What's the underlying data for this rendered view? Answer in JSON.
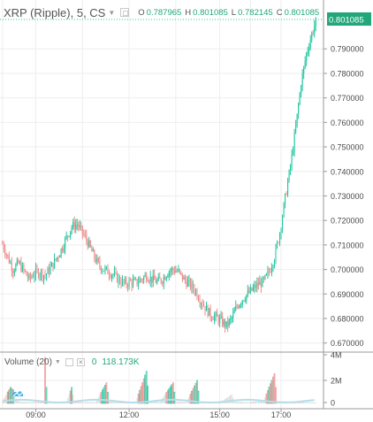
{
  "legend": {
    "title": "XRP (Ripple), 5, CS",
    "open_label": "O",
    "open_value": "0.787965",
    "high_label": "H",
    "high_value": "0.801085",
    "low_label": "L",
    "low_value": "0.782145",
    "close_label": "C",
    "close_value": "0.801085"
  },
  "volume_legend": {
    "label": "Volume (20)",
    "zero": "0",
    "value": "118.173K"
  },
  "colors": {
    "up": "#26c6a0",
    "down": "#f28b8b",
    "grid": "#eeeeee",
    "axis_text": "#4a4a4a",
    "price_tag_bg": "#22a77a",
    "volume_ma": "#b7dcea"
  },
  "chart_data": {
    "type": "candlestick",
    "last_price": "0.801085",
    "y_ticks": [
      "0.790000",
      "0.780000",
      "0.770000",
      "0.760000",
      "0.750000",
      "0.740000",
      "0.730000",
      "0.720000",
      "0.710000",
      "0.700000",
      "0.690000",
      "0.680000",
      "0.670000"
    ],
    "x_ticks": [
      "09:00",
      "12:00",
      "15:00",
      "17:00"
    ],
    "volume_ticks": [
      "4M",
      "2M",
      "0"
    ],
    "ylim": [
      0.667,
      0.802
    ],
    "close_path": [
      [
        0,
        0.7105
      ],
      [
        4,
        0.705
      ],
      [
        8,
        0.7
      ],
      [
        12,
        0.7025
      ],
      [
        16,
        0.6995
      ],
      [
        20,
        0.696
      ],
      [
        24,
        0.6985
      ],
      [
        28,
        0.699
      ],
      [
        32,
        0.6975
      ],
      [
        36,
        0.7005
      ],
      [
        40,
        0.704
      ],
      [
        44,
        0.708
      ],
      [
        48,
        0.713
      ],
      [
        52,
        0.7175
      ],
      [
        56,
        0.7185
      ],
      [
        60,
        0.715
      ],
      [
        64,
        0.711
      ],
      [
        68,
        0.706
      ],
      [
        72,
        0.702
      ],
      [
        76,
        0.7
      ],
      [
        80,
        0.699
      ],
      [
        84,
        0.6975
      ],
      [
        88,
        0.6955
      ],
      [
        92,
        0.694
      ],
      [
        96,
        0.695
      ],
      [
        100,
        0.6945
      ],
      [
        104,
        0.696
      ],
      [
        108,
        0.6975
      ],
      [
        112,
        0.696
      ],
      [
        116,
        0.695
      ],
      [
        120,
        0.696
      ],
      [
        124,
        0.699
      ],
      [
        128,
        0.7
      ],
      [
        132,
        0.699
      ],
      [
        136,
        0.696
      ],
      [
        140,
        0.694
      ],
      [
        144,
        0.692
      ],
      [
        148,
        0.688
      ],
      [
        152,
        0.6845
      ],
      [
        156,
        0.6815
      ],
      [
        160,
        0.6805
      ],
      [
        164,
        0.679
      ],
      [
        168,
        0.677
      ],
      [
        172,
        0.68
      ],
      [
        176,
        0.685
      ],
      [
        180,
        0.688
      ],
      [
        184,
        0.69
      ],
      [
        188,
        0.692
      ],
      [
        192,
        0.694
      ],
      [
        196,
        0.695
      ],
      [
        200,
        0.699
      ],
      [
        204,
        0.705
      ],
      [
        208,
        0.715
      ],
      [
        212,
        0.729
      ],
      [
        216,
        0.742
      ],
      [
        220,
        0.758
      ],
      [
        224,
        0.776
      ],
      [
        228,
        0.788
      ],
      [
        232,
        0.796
      ],
      [
        235,
        0.8011
      ]
    ],
    "volume_path": [
      [
        0,
        0.05
      ],
      [
        6,
        0.35
      ],
      [
        8,
        0.3
      ],
      [
        10,
        0.06
      ],
      [
        14,
        0.04
      ],
      [
        20,
        0.03
      ],
      [
        26,
        0.03
      ],
      [
        31,
        0.03
      ],
      [
        32,
        1.0
      ],
      [
        33,
        0.35
      ],
      [
        34,
        0.04
      ],
      [
        40,
        0.03
      ],
      [
        48,
        0.04
      ],
      [
        52,
        0.35
      ],
      [
        54,
        0.04
      ],
      [
        60,
        0.03
      ],
      [
        70,
        0.03
      ],
      [
        78,
        0.45
      ],
      [
        80,
        0.04
      ],
      [
        90,
        0.03
      ],
      [
        100,
        0.04
      ],
      [
        108,
        0.7
      ],
      [
        110,
        0.05
      ],
      [
        118,
        0.03
      ],
      [
        128,
        0.45
      ],
      [
        130,
        0.04
      ],
      [
        138,
        0.03
      ],
      [
        146,
        0.5
      ],
      [
        148,
        0.04
      ],
      [
        156,
        0.03
      ],
      [
        164,
        0.03
      ],
      [
        172,
        0.2
      ],
      [
        174,
        0.04
      ],
      [
        184,
        0.03
      ],
      [
        196,
        0.06
      ],
      [
        204,
        0.65
      ],
      [
        206,
        0.05
      ],
      [
        216,
        0.04
      ],
      [
        226,
        0.03
      ],
      [
        235,
        0.02
      ]
    ]
  }
}
